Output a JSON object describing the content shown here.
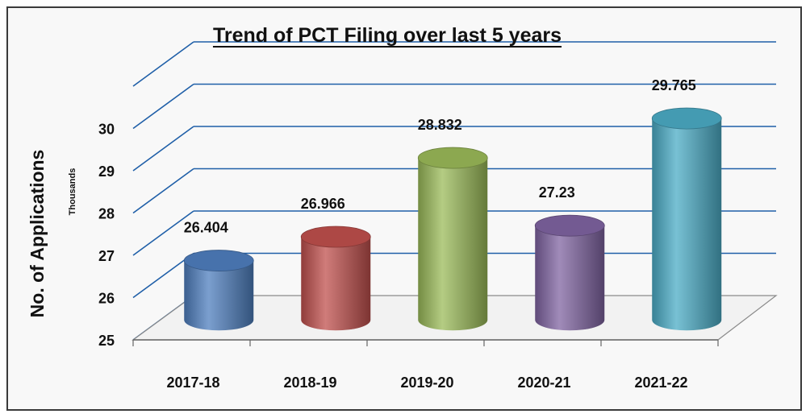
{
  "chart_data": {
    "type": "bar",
    "title": "Trend of PCT Filing over last 5 years",
    "ylabel": "No. of Applications",
    "yunit": "Thousands",
    "xlabel": "",
    "categories": [
      "2017-18",
      "2018-19",
      "2019-20",
      "2020-21",
      "2021-22"
    ],
    "values": [
      26.404,
      26.966,
      28.832,
      27.23,
      29.765
    ],
    "value_labels": [
      "26.404",
      "26.966",
      "28.832",
      "27.23",
      "29.765"
    ],
    "ylim": [
      25,
      30
    ],
    "yticks": [
      "25",
      "26",
      "27",
      "28",
      "29",
      "30"
    ],
    "colors": [
      "#4f7fbf",
      "#c0504d",
      "#9bbb59",
      "#8064a2",
      "#4bacc6"
    ],
    "grid": true,
    "legend": "none",
    "style": "3d-cylinder"
  }
}
